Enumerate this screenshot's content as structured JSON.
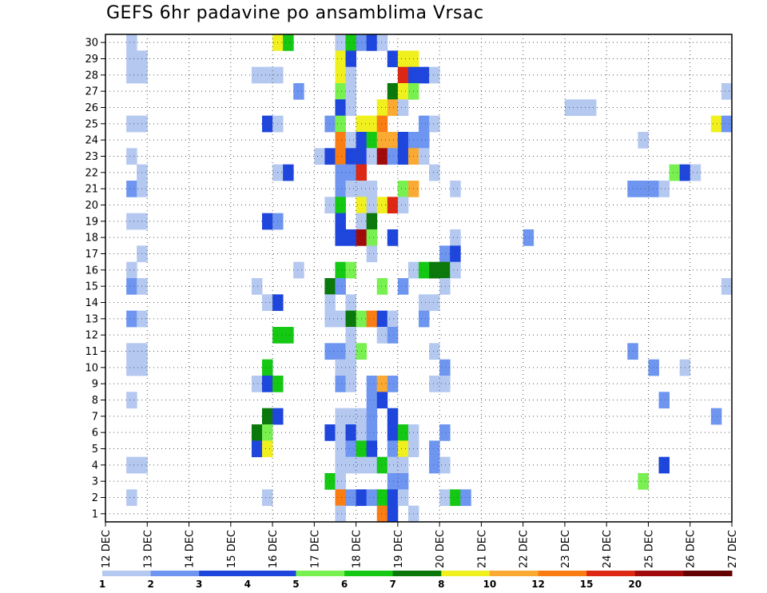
{
  "chart_data": {
    "type": "heatmap",
    "title": "GEFS 6hr padavine po ansamblima Vrsac",
    "x_tick_labels": [
      "12 DEC",
      "13 DEC",
      "14 DEC",
      "15 DEC",
      "16 DEC",
      "17 DEC",
      "18 DEC",
      "19 DEC",
      "20 DEC",
      "21 DEC",
      "22 DEC",
      "23 DEC",
      "24 DEC",
      "25 DEC",
      "26 DEC",
      "27 DEC"
    ],
    "y_tick_labels": [
      1,
      2,
      3,
      4,
      5,
      6,
      7,
      8,
      9,
      10,
      11,
      12,
      13,
      14,
      15,
      16,
      17,
      18,
      19,
      20,
      21,
      22,
      23,
      24,
      25,
      26,
      27,
      28,
      29,
      30
    ],
    "xlim": [
      0,
      15
    ],
    "ylim": [
      0.5,
      30.5
    ],
    "grid": true,
    "colorbar_labels": [
      "1",
      "2",
      "3",
      "4",
      "5",
      "6",
      "7",
      "8",
      "10",
      "12",
      "15",
      "20"
    ],
    "colorbar_colors": [
      "#b4c8f0",
      "#6e96f0",
      "#1e46dc",
      "#1e46dc",
      "#78f050",
      "#14c814",
      "#0a780a",
      "#f0f01e",
      "#faaa32",
      "#fa7d14",
      "#dc2814",
      "#a00a0a",
      "#640000"
    ],
    "colors": {
      "c1": "#b4c8f0",
      "c2": "#6e96f0",
      "c3": "#1e46dc",
      "c4": "#78f050",
      "c5": "#14c814",
      "c6": "#0a780a",
      "c7": "#f0f01e",
      "c8": "#faaa32",
      "c9": "#fa7d14",
      "c10": "#dc2814",
      "c11": "#a00a0a",
      "c12": "#640000"
    },
    "cells": [
      {
        "y": 30,
        "x": 0.5,
        "v": 1
      },
      {
        "y": 30,
        "x": 4.0,
        "v": 8
      },
      {
        "y": 30,
        "x": 4.25,
        "v": 6
      },
      {
        "y": 30,
        "x": 5.5,
        "v": 1
      },
      {
        "y": 30,
        "x": 5.75,
        "v": 6
      },
      {
        "y": 30,
        "x": 6.0,
        "v": 2
      },
      {
        "y": 30,
        "x": 6.25,
        "v": 3
      },
      {
        "y": 30,
        "x": 6.5,
        "v": 1
      },
      {
        "y": 29,
        "x": 0.5,
        "v": 1
      },
      {
        "y": 29,
        "x": 0.75,
        "v": 1
      },
      {
        "y": 29,
        "x": 5.5,
        "v": 8
      },
      {
        "y": 29,
        "x": 5.75,
        "v": 4
      },
      {
        "y": 29,
        "x": 6.75,
        "v": 4
      },
      {
        "y": 29,
        "x": 7.0,
        "v": 8
      },
      {
        "y": 29,
        "x": 7.25,
        "v": 8
      },
      {
        "y": 28,
        "x": 0.5,
        "v": 1
      },
      {
        "y": 28,
        "x": 0.75,
        "v": 1
      },
      {
        "y": 28,
        "x": 3.5,
        "v": 1
      },
      {
        "y": 28,
        "x": 3.75,
        "v": 1
      },
      {
        "y": 28,
        "x": 4.0,
        "v": 1
      },
      {
        "y": 28,
        "x": 5.5,
        "v": 8
      },
      {
        "y": 28,
        "x": 5.75,
        "v": 1
      },
      {
        "y": 28,
        "x": 7.0,
        "v": 11
      },
      {
        "y": 28,
        "x": 7.25,
        "v": 4
      },
      {
        "y": 28,
        "x": 7.5,
        "v": 3
      },
      {
        "y": 28,
        "x": 7.75,
        "v": 1
      },
      {
        "y": 27,
        "x": 4.5,
        "v": 2
      },
      {
        "y": 27,
        "x": 5.5,
        "v": 5
      },
      {
        "y": 27,
        "x": 5.75,
        "v": 1
      },
      {
        "y": 27,
        "x": 6.75,
        "v": 7
      },
      {
        "y": 27,
        "x": 7.0,
        "v": 8
      },
      {
        "y": 27,
        "x": 7.25,
        "v": 5
      },
      {
        "y": 27,
        "x": 14.75,
        "v": 1
      },
      {
        "y": 26,
        "x": 5.5,
        "v": 4
      },
      {
        "y": 26,
        "x": 5.75,
        "v": 1
      },
      {
        "y": 26,
        "x": 6.5,
        "v": 8
      },
      {
        "y": 26,
        "x": 6.75,
        "v": 9
      },
      {
        "y": 26,
        "x": 7.0,
        "v": 1
      },
      {
        "y": 26,
        "x": 11.0,
        "v": 1
      },
      {
        "y": 26,
        "x": 11.25,
        "v": 1
      },
      {
        "y": 26,
        "x": 11.5,
        "v": 1
      },
      {
        "y": 25,
        "x": 0.5,
        "v": 1
      },
      {
        "y": 25,
        "x": 0.75,
        "v": 1
      },
      {
        "y": 25,
        "x": 3.75,
        "v": 3
      },
      {
        "y": 25,
        "x": 4.0,
        "v": 1
      },
      {
        "y": 25,
        "x": 5.25,
        "v": 2
      },
      {
        "y": 25,
        "x": 5.5,
        "v": 5
      },
      {
        "y": 25,
        "x": 6.0,
        "v": 8
      },
      {
        "y": 25,
        "x": 6.25,
        "v": 8
      },
      {
        "y": 25,
        "x": 6.5,
        "v": 10
      },
      {
        "y": 25,
        "x": 7.5,
        "v": 2
      },
      {
        "y": 25,
        "x": 7.75,
        "v": 1
      },
      {
        "y": 25,
        "x": 14.5,
        "v": 8
      },
      {
        "y": 25,
        "x": 14.75,
        "v": 2
      },
      {
        "y": 24,
        "x": 5.5,
        "v": 10
      },
      {
        "y": 24,
        "x": 5.75,
        "v": 1
      },
      {
        "y": 24,
        "x": 6.0,
        "v": 3
      },
      {
        "y": 24,
        "x": 6.25,
        "v": 6
      },
      {
        "y": 24,
        "x": 6.5,
        "v": 9
      },
      {
        "y": 24,
        "x": 6.75,
        "v": 9
      },
      {
        "y": 24,
        "x": 7.0,
        "v": 3
      },
      {
        "y": 24,
        "x": 7.25,
        "v": 2
      },
      {
        "y": 24,
        "x": 7.5,
        "v": 2
      },
      {
        "y": 24,
        "x": 12.75,
        "v": 1
      },
      {
        "y": 23,
        "x": 0.5,
        "v": 1
      },
      {
        "y": 23,
        "x": 5.0,
        "v": 1
      },
      {
        "y": 23,
        "x": 5.25,
        "v": 3
      },
      {
        "y": 23,
        "x": 5.5,
        "v": 10
      },
      {
        "y": 23,
        "x": 5.75,
        "v": 3
      },
      {
        "y": 23,
        "x": 6.0,
        "v": 3
      },
      {
        "y": 23,
        "x": 6.25,
        "v": 1
      },
      {
        "y": 23,
        "x": 6.5,
        "v": 12
      },
      {
        "y": 23,
        "x": 6.75,
        "v": 2
      },
      {
        "y": 23,
        "x": 7.0,
        "v": 3
      },
      {
        "y": 23,
        "x": 7.25,
        "v": 9
      },
      {
        "y": 23,
        "x": 7.5,
        "v": 1
      },
      {
        "y": 22,
        "x": 0.75,
        "v": 1
      },
      {
        "y": 22,
        "x": 4.0,
        "v": 1
      },
      {
        "y": 22,
        "x": 4.25,
        "v": 4
      },
      {
        "y": 22,
        "x": 5.5,
        "v": 2
      },
      {
        "y": 22,
        "x": 5.75,
        "v": 2
      },
      {
        "y": 22,
        "x": 6.0,
        "v": 11
      },
      {
        "y": 22,
        "x": 7.75,
        "v": 1
      },
      {
        "y": 22,
        "x": 13.5,
        "v": 5
      },
      {
        "y": 22,
        "x": 13.75,
        "v": 3
      },
      {
        "y": 22,
        "x": 14.0,
        "v": 1
      },
      {
        "y": 21,
        "x": 0.5,
        "v": 2
      },
      {
        "y": 21,
        "x": 0.75,
        "v": 1
      },
      {
        "y": 21,
        "x": 5.5,
        "v": 2
      },
      {
        "y": 21,
        "x": 5.75,
        "v": 1
      },
      {
        "y": 21,
        "x": 6.0,
        "v": 1
      },
      {
        "y": 21,
        "x": 6.25,
        "v": 1
      },
      {
        "y": 21,
        "x": 7.0,
        "v": 5
      },
      {
        "y": 21,
        "x": 7.25,
        "v": 9
      },
      {
        "y": 21,
        "x": 8.25,
        "v": 1
      },
      {
        "y": 21,
        "x": 12.5,
        "v": 2
      },
      {
        "y": 21,
        "x": 12.75,
        "v": 2
      },
      {
        "y": 21,
        "x": 13.0,
        "v": 2
      },
      {
        "y": 21,
        "x": 13.25,
        "v": 1
      },
      {
        "y": 20,
        "x": 5.25,
        "v": 1
      },
      {
        "y": 20,
        "x": 5.5,
        "v": 6
      },
      {
        "y": 20,
        "x": 6.0,
        "v": 8
      },
      {
        "y": 20,
        "x": 6.25,
        "v": 1
      },
      {
        "y": 20,
        "x": 6.5,
        "v": 8
      },
      {
        "y": 20,
        "x": 6.75,
        "v": 11
      },
      {
        "y": 20,
        "x": 7.0,
        "v": 1
      },
      {
        "y": 19,
        "x": 0.5,
        "v": 1
      },
      {
        "y": 19,
        "x": 0.75,
        "v": 1
      },
      {
        "y": 19,
        "x": 3.75,
        "v": 3
      },
      {
        "y": 19,
        "x": 4.0,
        "v": 2
      },
      {
        "y": 19,
        "x": 5.5,
        "v": 4
      },
      {
        "y": 19,
        "x": 6.0,
        "v": 1
      },
      {
        "y": 19,
        "x": 6.25,
        "v": 7
      },
      {
        "y": 18,
        "x": 5.5,
        "v": 3
      },
      {
        "y": 18,
        "x": 5.75,
        "v": 4
      },
      {
        "y": 18,
        "x": 6.0,
        "v": 12
      },
      {
        "y": 18,
        "x": 6.25,
        "v": 5
      },
      {
        "y": 18,
        "x": 6.75,
        "v": 3
      },
      {
        "y": 18,
        "x": 8.25,
        "v": 1
      },
      {
        "y": 18,
        "x": 10.0,
        "v": 2
      },
      {
        "y": 17,
        "x": 0.75,
        "v": 1
      },
      {
        "y": 17,
        "x": 6.25,
        "v": 1
      },
      {
        "y": 17,
        "x": 8.0,
        "v": 2
      },
      {
        "y": 17,
        "x": 8.25,
        "v": 3
      },
      {
        "y": 16,
        "x": 0.5,
        "v": 1
      },
      {
        "y": 16,
        "x": 4.5,
        "v": 1
      },
      {
        "y": 16,
        "x": 5.5,
        "v": 6
      },
      {
        "y": 16,
        "x": 5.75,
        "v": 5
      },
      {
        "y": 16,
        "x": 7.25,
        "v": 1
      },
      {
        "y": 16,
        "x": 7.5,
        "v": 6
      },
      {
        "y": 16,
        "x": 7.75,
        "v": 7
      },
      {
        "y": 16,
        "x": 8.0,
        "v": 7
      },
      {
        "y": 16,
        "x": 8.25,
        "v": 1
      },
      {
        "y": 15,
        "x": 0.5,
        "v": 2
      },
      {
        "y": 15,
        "x": 0.75,
        "v": 1
      },
      {
        "y": 15,
        "x": 3.5,
        "v": 1
      },
      {
        "y": 15,
        "x": 5.25,
        "v": 7
      },
      {
        "y": 15,
        "x": 5.5,
        "v": 2
      },
      {
        "y": 15,
        "x": 6.5,
        "v": 5
      },
      {
        "y": 15,
        "x": 7.0,
        "v": 2
      },
      {
        "y": 15,
        "x": 8.0,
        "v": 1
      },
      {
        "y": 15,
        "x": 14.75,
        "v": 1
      },
      {
        "y": 14,
        "x": 3.75,
        "v": 1
      },
      {
        "y": 14,
        "x": 4.0,
        "v": 3
      },
      {
        "y": 14,
        "x": 5.25,
        "v": 1
      },
      {
        "y": 14,
        "x": 5.75,
        "v": 1
      },
      {
        "y": 14,
        "x": 7.5,
        "v": 1
      },
      {
        "y": 14,
        "x": 7.75,
        "v": 1
      },
      {
        "y": 13,
        "x": 0.5,
        "v": 2
      },
      {
        "y": 13,
        "x": 0.75,
        "v": 1
      },
      {
        "y": 13,
        "x": 5.25,
        "v": 1
      },
      {
        "y": 13,
        "x": 5.5,
        "v": 1
      },
      {
        "y": 13,
        "x": 5.75,
        "v": 7
      },
      {
        "y": 13,
        "x": 6.0,
        "v": 5
      },
      {
        "y": 13,
        "x": 6.25,
        "v": 10
      },
      {
        "y": 13,
        "x": 6.5,
        "v": 3
      },
      {
        "y": 13,
        "x": 6.75,
        "v": 1
      },
      {
        "y": 13,
        "x": 7.5,
        "v": 2
      },
      {
        "y": 12,
        "x": 4.0,
        "v": 6
      },
      {
        "y": 12,
        "x": 4.25,
        "v": 6
      },
      {
        "y": 12,
        "x": 5.75,
        "v": 1
      },
      {
        "y": 12,
        "x": 6.5,
        "v": 1
      },
      {
        "y": 12,
        "x": 6.75,
        "v": 2
      },
      {
        "y": 11,
        "x": 0.5,
        "v": 1
      },
      {
        "y": 11,
        "x": 0.75,
        "v": 1
      },
      {
        "y": 11,
        "x": 5.25,
        "v": 2
      },
      {
        "y": 11,
        "x": 5.5,
        "v": 2
      },
      {
        "y": 11,
        "x": 5.75,
        "v": 1
      },
      {
        "y": 11,
        "x": 6.0,
        "v": 5
      },
      {
        "y": 11,
        "x": 7.75,
        "v": 1
      },
      {
        "y": 11,
        "x": 12.5,
        "v": 2
      },
      {
        "y": 10,
        "x": 0.5,
        "v": 1
      },
      {
        "y": 10,
        "x": 0.75,
        "v": 1
      },
      {
        "y": 10,
        "x": 3.75,
        "v": 6
      },
      {
        "y": 10,
        "x": 5.5,
        "v": 1
      },
      {
        "y": 10,
        "x": 5.75,
        "v": 1
      },
      {
        "y": 10,
        "x": 8.0,
        "v": 2
      },
      {
        "y": 10,
        "x": 13.0,
        "v": 2
      },
      {
        "y": 10,
        "x": 13.75,
        "v": 1
      },
      {
        "y": 9,
        "x": 3.5,
        "v": 1
      },
      {
        "y": 9,
        "x": 3.75,
        "v": 4
      },
      {
        "y": 9,
        "x": 4.0,
        "v": 6
      },
      {
        "y": 9,
        "x": 5.5,
        "v": 2
      },
      {
        "y": 9,
        "x": 5.75,
        "v": 1
      },
      {
        "y": 9,
        "x": 6.25,
        "v": 2
      },
      {
        "y": 9,
        "x": 6.5,
        "v": 9
      },
      {
        "y": 9,
        "x": 6.75,
        "v": 2
      },
      {
        "y": 9,
        "x": 7.75,
        "v": 1
      },
      {
        "y": 9,
        "x": 8.0,
        "v": 1
      },
      {
        "y": 8,
        "x": 0.5,
        "v": 1
      },
      {
        "y": 8,
        "x": 6.25,
        "v": 2
      },
      {
        "y": 8,
        "x": 6.5,
        "v": 4
      },
      {
        "y": 8,
        "x": 13.25,
        "v": 2
      },
      {
        "y": 7,
        "x": 3.75,
        "v": 7
      },
      {
        "y": 7,
        "x": 4.0,
        "v": 3
      },
      {
        "y": 7,
        "x": 5.5,
        "v": 1
      },
      {
        "y": 7,
        "x": 5.75,
        "v": 1
      },
      {
        "y": 7,
        "x": 6.0,
        "v": 1
      },
      {
        "y": 7,
        "x": 6.25,
        "v": 2
      },
      {
        "y": 7,
        "x": 6.75,
        "v": 3
      },
      {
        "y": 7,
        "x": 14.5,
        "v": 2
      },
      {
        "y": 6,
        "x": 3.5,
        "v": 7
      },
      {
        "y": 6,
        "x": 3.75,
        "v": 5
      },
      {
        "y": 6,
        "x": 5.25,
        "v": 3
      },
      {
        "y": 6,
        "x": 5.5,
        "v": 1
      },
      {
        "y": 6,
        "x": 5.75,
        "v": 3
      },
      {
        "y": 6,
        "x": 6.0,
        "v": 1
      },
      {
        "y": 6,
        "x": 6.25,
        "v": 2
      },
      {
        "y": 6,
        "x": 6.75,
        "v": 3
      },
      {
        "y": 6,
        "x": 7.0,
        "v": 6
      },
      {
        "y": 6,
        "x": 7.25,
        "v": 1
      },
      {
        "y": 6,
        "x": 8.0,
        "v": 2
      },
      {
        "y": 5,
        "x": 3.5,
        "v": 4
      },
      {
        "y": 5,
        "x": 3.75,
        "v": 8
      },
      {
        "y": 5,
        "x": 5.5,
        "v": 1
      },
      {
        "y": 5,
        "x": 5.75,
        "v": 2
      },
      {
        "y": 5,
        "x": 6.0,
        "v": 6
      },
      {
        "y": 5,
        "x": 6.25,
        "v": 3
      },
      {
        "y": 5,
        "x": 6.75,
        "v": 2
      },
      {
        "y": 5,
        "x": 7.0,
        "v": 8
      },
      {
        "y": 5,
        "x": 7.25,
        "v": 1
      },
      {
        "y": 5,
        "x": 7.75,
        "v": 2
      },
      {
        "y": 4,
        "x": 0.5,
        "v": 1
      },
      {
        "y": 4,
        "x": 0.75,
        "v": 1
      },
      {
        "y": 4,
        "x": 5.5,
        "v": 1
      },
      {
        "y": 4,
        "x": 5.75,
        "v": 1
      },
      {
        "y": 4,
        "x": 6.0,
        "v": 1
      },
      {
        "y": 4,
        "x": 6.25,
        "v": 1
      },
      {
        "y": 4,
        "x": 6.5,
        "v": 6
      },
      {
        "y": 4,
        "x": 6.75,
        "v": 1
      },
      {
        "y": 4,
        "x": 7.0,
        "v": 1
      },
      {
        "y": 4,
        "x": 7.75,
        "v": 2
      },
      {
        "y": 4,
        "x": 8.0,
        "v": 1
      },
      {
        "y": 4,
        "x": 13.25,
        "v": 3
      },
      {
        "y": 3,
        "x": 5.25,
        "v": 6
      },
      {
        "y": 3,
        "x": 5.5,
        "v": 1
      },
      {
        "y": 3,
        "x": 6.75,
        "v": 2
      },
      {
        "y": 3,
        "x": 7.0,
        "v": 2
      },
      {
        "y": 3,
        "x": 12.75,
        "v": 5
      },
      {
        "y": 2,
        "x": 0.5,
        "v": 1
      },
      {
        "y": 2,
        "x": 3.75,
        "v": 1
      },
      {
        "y": 2,
        "x": 5.5,
        "v": 10
      },
      {
        "y": 2,
        "x": 5.75,
        "v": 2
      },
      {
        "y": 2,
        "x": 6.0,
        "v": 3
      },
      {
        "y": 2,
        "x": 6.25,
        "v": 2
      },
      {
        "y": 2,
        "x": 6.5,
        "v": 6
      },
      {
        "y": 2,
        "x": 6.75,
        "v": 4
      },
      {
        "y": 2,
        "x": 7.0,
        "v": 1
      },
      {
        "y": 2,
        "x": 8.0,
        "v": 1
      },
      {
        "y": 2,
        "x": 8.25,
        "v": 6
      },
      {
        "y": 2,
        "x": 8.5,
        "v": 2
      },
      {
        "y": 1,
        "x": 5.5,
        "v": 1
      },
      {
        "y": 1,
        "x": 6.5,
        "v": 10
      },
      {
        "y": 1,
        "x": 6.75,
        "v": 4
      },
      {
        "y": 1,
        "x": 7.25,
        "v": 1
      }
    ]
  }
}
